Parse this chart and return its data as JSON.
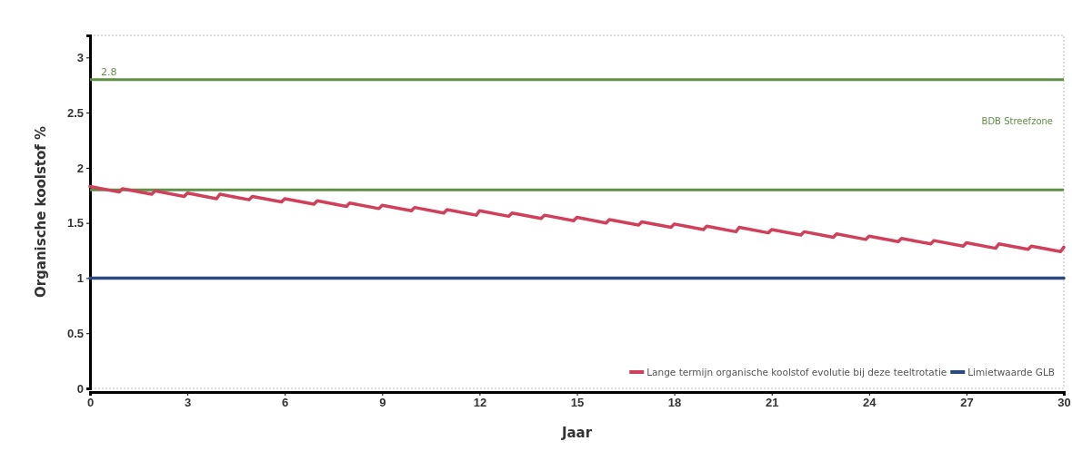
{
  "chart_data": {
    "type": "line",
    "xlabel": "Jaar",
    "ylabel": "Organische koolstof %",
    "xlim": [
      0,
      30
    ],
    "xticks": [
      0,
      3,
      6,
      9,
      12,
      15,
      18,
      21,
      24,
      27,
      30
    ],
    "ylim": [
      0,
      3.2
    ],
    "yticks": [
      0,
      0.5,
      1,
      1.5,
      2,
      2.5,
      3
    ],
    "grid": false,
    "legend": "bottom right",
    "line_style": "solid",
    "marker": "none",
    "series": [
      {
        "name": "Lange termijn organische koolstof evolutie bij deze teeltrotatie",
        "color": "#d0405a",
        "x": [
          0,
          0.9,
          1,
          1.9,
          2,
          2.9,
          3,
          3.9,
          4,
          4.9,
          5,
          5.9,
          6,
          6.9,
          7,
          7.9,
          8,
          8.9,
          9,
          9.9,
          10,
          10.9,
          11,
          11.9,
          12,
          12.9,
          13,
          13.9,
          14,
          14.9,
          15,
          15.9,
          16,
          16.9,
          17,
          17.9,
          18,
          18.9,
          19,
          19.9,
          20,
          20.9,
          21,
          21.9,
          22,
          22.9,
          23,
          23.9,
          24,
          24.9,
          25,
          25.9,
          26,
          26.9,
          27,
          27.9,
          28,
          28.9,
          29,
          29.9,
          30
        ],
        "values": [
          1.83,
          1.78,
          1.81,
          1.76,
          1.79,
          1.74,
          1.77,
          1.72,
          1.76,
          1.71,
          1.74,
          1.69,
          1.72,
          1.67,
          1.7,
          1.65,
          1.68,
          1.63,
          1.66,
          1.61,
          1.64,
          1.59,
          1.62,
          1.57,
          1.61,
          1.56,
          1.59,
          1.54,
          1.57,
          1.52,
          1.55,
          1.5,
          1.53,
          1.48,
          1.51,
          1.46,
          1.49,
          1.44,
          1.47,
          1.42,
          1.46,
          1.41,
          1.44,
          1.39,
          1.42,
          1.37,
          1.4,
          1.35,
          1.38,
          1.33,
          1.36,
          1.31,
          1.34,
          1.29,
          1.32,
          1.27,
          1.31,
          1.26,
          1.29,
          1.24,
          1.28
        ]
      },
      {
        "name": "Limietwaarde GLB",
        "color": "#2a4a7c",
        "x": [
          0,
          30
        ],
        "values": [
          1,
          1
        ]
      }
    ],
    "ref_lines": [
      {
        "axis": "y",
        "value": 2.8,
        "label": "2.8",
        "color": "#5f8f45"
      },
      {
        "axis": "y",
        "value": 1.8,
        "color": "#5f8f45"
      }
    ],
    "annotations": [
      "BDB Streefzone"
    ]
  }
}
